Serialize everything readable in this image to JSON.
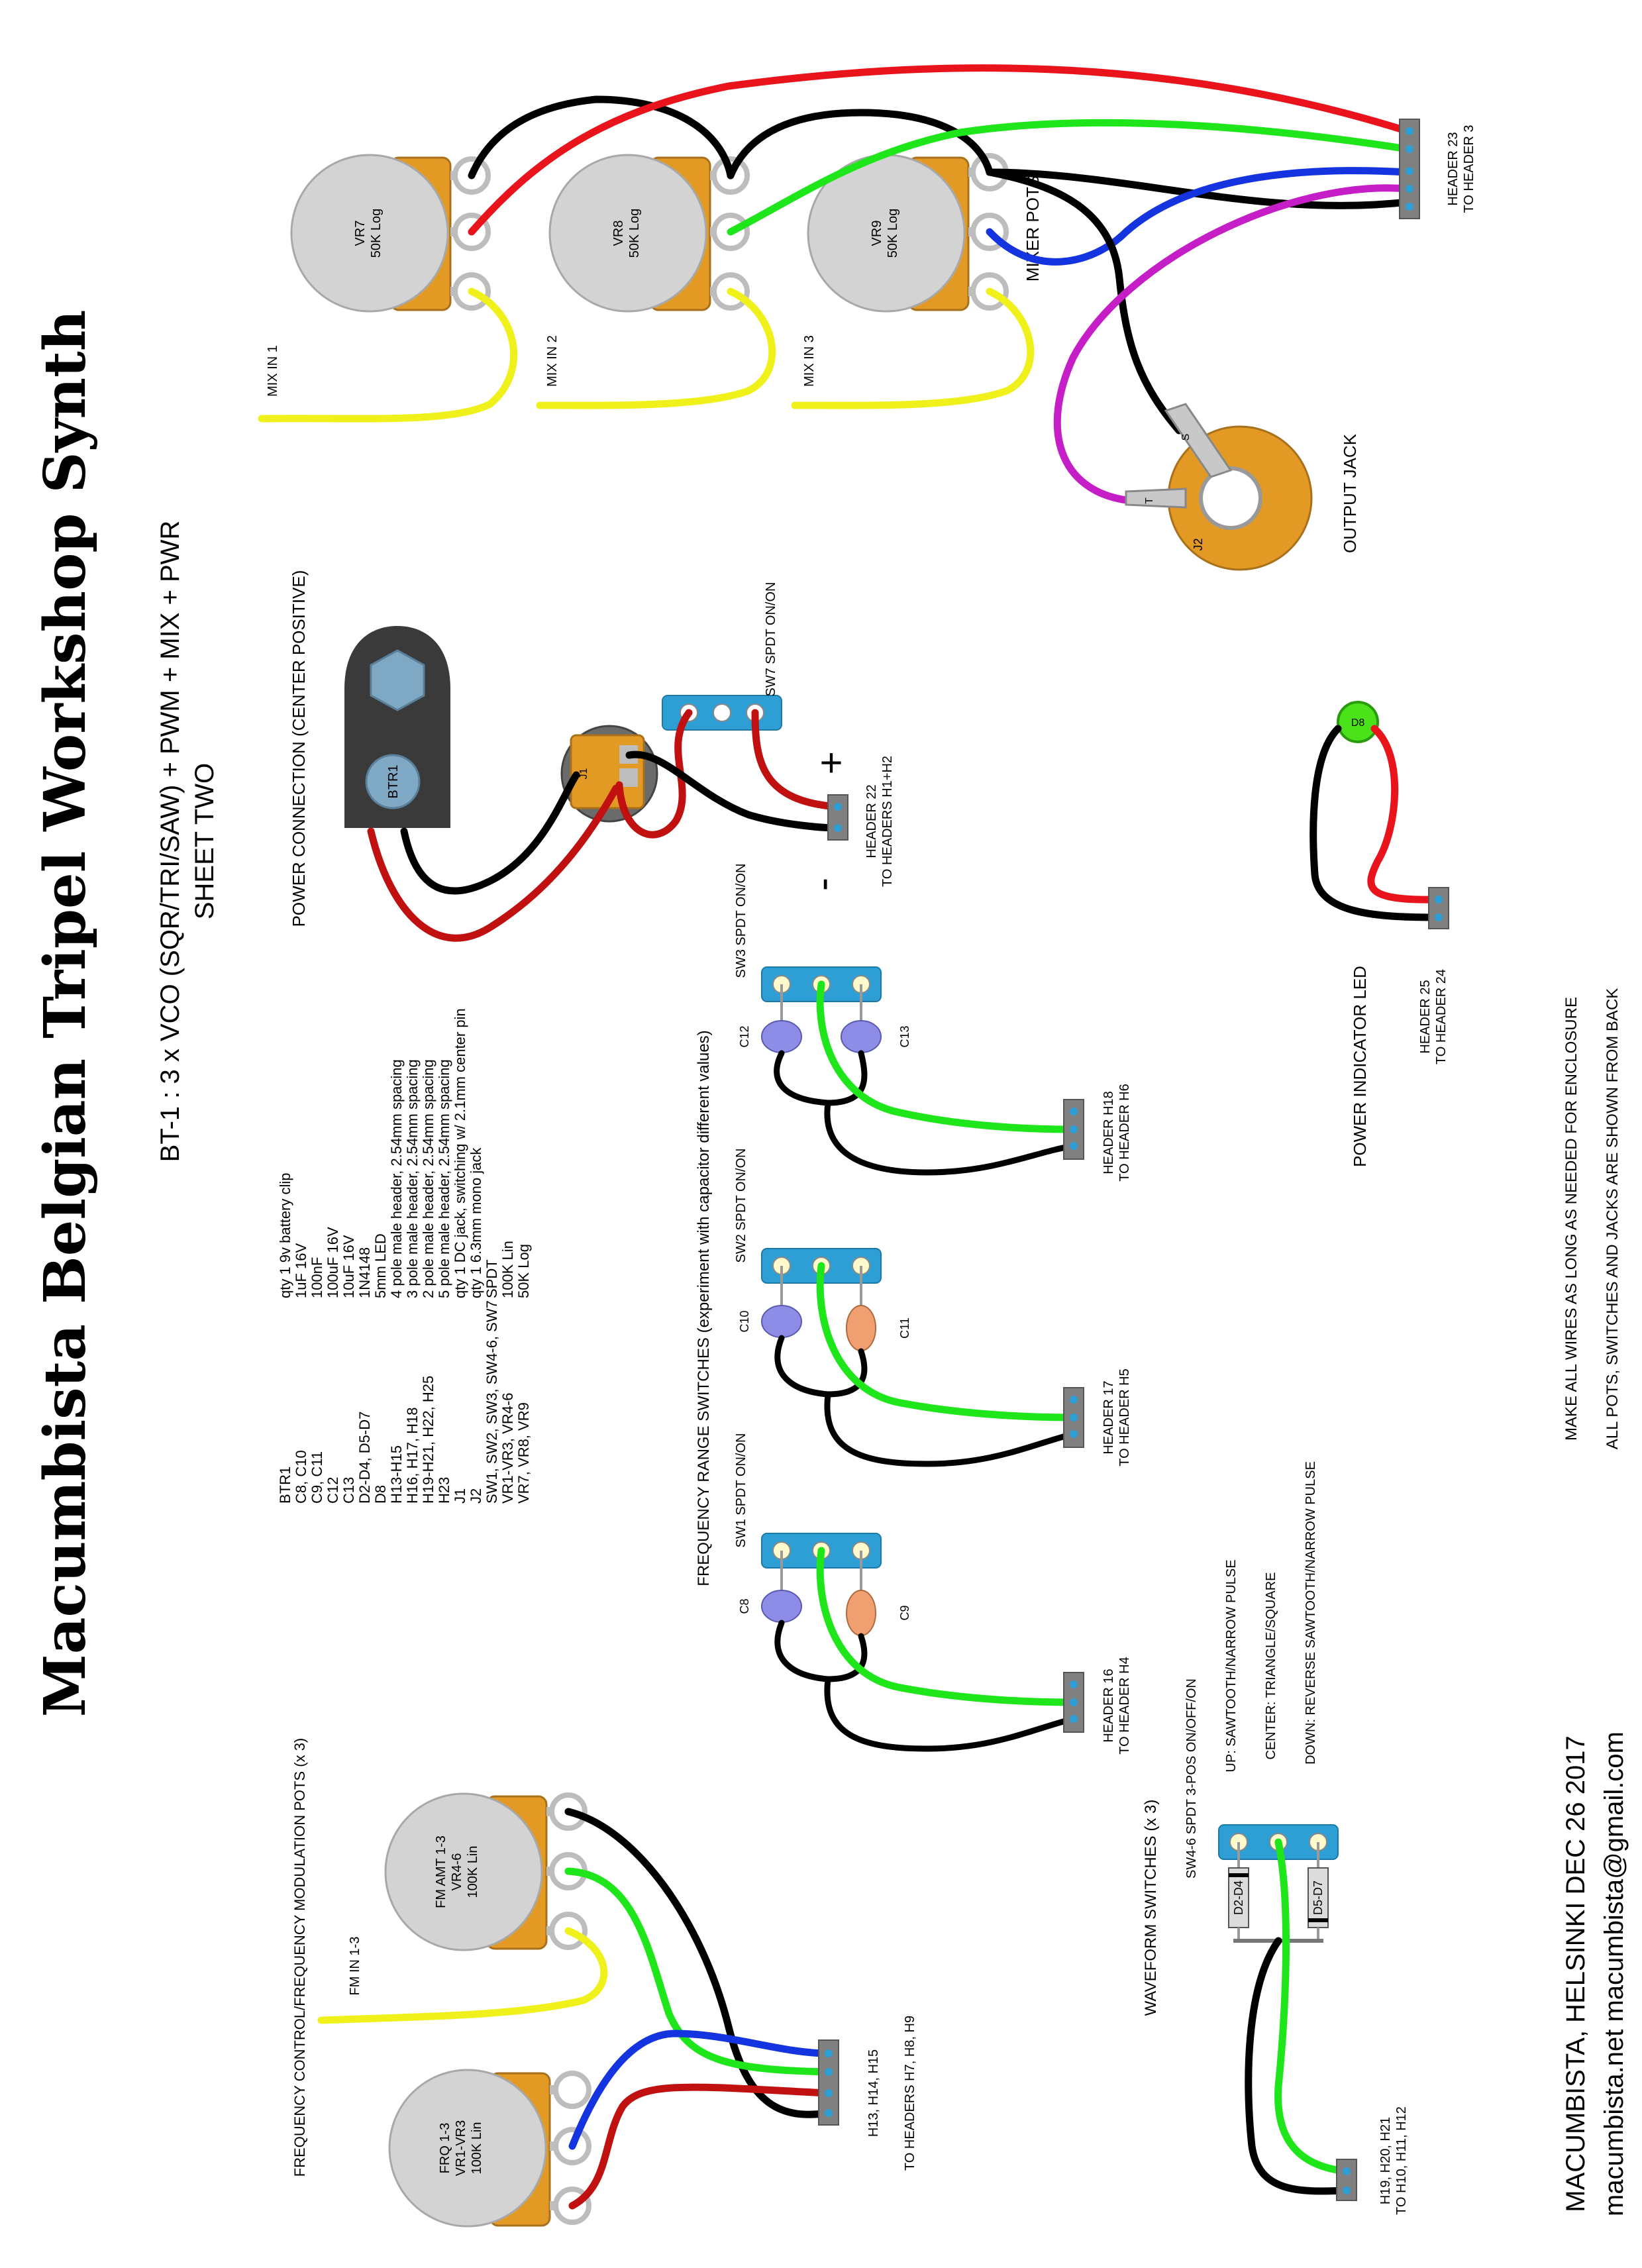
{
  "title": "Macumbista Belgian Tripel Workshop Synth",
  "subtitle": "BT-1 : 3 x VCO (SQR/TRI/SAW) + PWM + MIX + PWR",
  "sheet": "SHEET TWO",
  "colors": {
    "pot_body": "#d3d3d3",
    "pot_lug_plate": "#e39a25",
    "switch_body": "#2d9fd4",
    "jack_body": "#e39a25",
    "header_body": "#808080",
    "wire_red": "#e8131b",
    "wire_black": "#000000",
    "wire_green": "#1fe61b",
    "wire_blue": "#1434e0",
    "wire_yellow": "#f0f01a",
    "wire_magenta": "#c61ec6",
    "wire_darkred": "#c01010",
    "cap_blue": "#8d8de8",
    "cap_orange": "#f0a070",
    "led_green": "#4be21a"
  },
  "mixer": {
    "section_label": "MIXER POTS",
    "pots": [
      {
        "id": "VR7",
        "value": "50K Log"
      },
      {
        "id": "VR8",
        "value": "50K Log"
      },
      {
        "id": "VR9",
        "value": "50K Log"
      }
    ],
    "inputs": [
      "MIX IN 1",
      "MIX IN 2",
      "MIX IN 3"
    ],
    "header": {
      "name": "HEADER 23",
      "dest": "TO HEADER 3"
    },
    "jack": {
      "label": "OUTPUT JACK",
      "id": "J2",
      "pin_s": "S",
      "pin_t": "T"
    }
  },
  "power": {
    "section_label": "POWER CONNECTION (CENTER POSITIVE)",
    "battery": "BTR1",
    "dc_jack": "J1",
    "switch_label": "SW7 SPDT ON/ON",
    "header": {
      "name": "HEADER 22",
      "dest": "TO HEADERS H1+H2"
    },
    "plus": "+",
    "minus": "-"
  },
  "led": {
    "id": "D8",
    "label": "POWER INDICATOR LED",
    "header": {
      "name": "HEADER 25",
      "dest": "TO HEADER 24"
    }
  },
  "freq_range": {
    "section_label": "FREQUENCY RANGE SWITCHES (experiment with capacitor different values)",
    "switches": [
      {
        "label": "SW1 SPDT ON/ON",
        "cap_a": "C8",
        "cap_b": "C9",
        "header": "HEADER 16",
        "dest": "TO HEADER H4"
      },
      {
        "label": "SW2 SPDT ON/ON",
        "cap_a": "C10",
        "cap_b": "C11",
        "header": "HEADER 17",
        "dest": "TO HEADER H5"
      },
      {
        "label": "SW3 SPDT ON/ON",
        "cap_a": "C12",
        "cap_b": "C13",
        "header": "HEADER H18",
        "dest": "TO HEADER H6"
      }
    ]
  },
  "bom": {
    "refs": [
      "BTR1",
      "C8, C10",
      "C9, C11",
      "C12",
      "C13",
      "D2-D4, D5-D7",
      "D8",
      "H13-H15",
      "H16, H17, H18",
      "H19-H21, H22, H25",
      "H23",
      "J1",
      "J2",
      "SW1, SW2, SW3, SW4-6, SW7",
      "VR1-VR3, VR4-6",
      "VR7, VR8, VR9"
    ],
    "descs": [
      "qty 1    9v battery clip",
      "1uF 16V",
      "100nF",
      "100uF 16V",
      "10uF 16V",
      "1N4148",
      "5mm LED",
      "4 pole male header, 2.54mm spacing",
      "3 pole male header, 2.54mm spacing",
      "2 pole male header, 2.54mm spacing",
      "5 pole male header, 2.54mm spacing",
      "qty 1  DC jack, switching w/ 2.1mm center pin",
      "qty 1  6.3mm mono jack",
      "SPDT",
      "100K Lin",
      "50K Log"
    ]
  },
  "fm": {
    "section_label": "FREQUENCY CONTROL/FREQUENCY MODULATION POTS (x 3)",
    "pot_fm": {
      "name": "FM AMT 1-3",
      "ref": "VR4-6",
      "value": "100K Lin"
    },
    "pot_frq": {
      "name": "FRQ 1-3",
      "ref": "VR1-VR3",
      "value": "100K Lin"
    },
    "input": "FM IN 1-3",
    "header": {
      "name": "H13, H14, H15",
      "dest": "TO HEADERS H7, H8, H9"
    }
  },
  "waveform": {
    "section_label": "WAVEFORM SWITCHES (x 3)",
    "switch_label": "SW4-6 SPDT 3-POS ON/OFF/ON",
    "up": "UP: SAWTOOTH/NARROW PULSE",
    "center": "CENTER: TRIANGLE/SQUARE",
    "down": "DOWN: REVERSE SAWTOOTH/NARROW PULSE",
    "diode_a": "D2-D4",
    "diode_b": "D5-D7",
    "header": {
      "name": "H19, H20, H21",
      "dest": "TO H10, H11, H12"
    }
  },
  "notes": {
    "line1": "MAKE ALL WIRES AS LONG AS NEEDED FOR ENCLOSURE",
    "line2": "ALL POTS, SWITCHES AND JACKS ARE SHOWN FROM BACK"
  },
  "footer": {
    "line1": "MACUMBISTA, HELSINKI DEC 26 2017",
    "line2": "macumbista.net macumbista@gmail.com"
  }
}
